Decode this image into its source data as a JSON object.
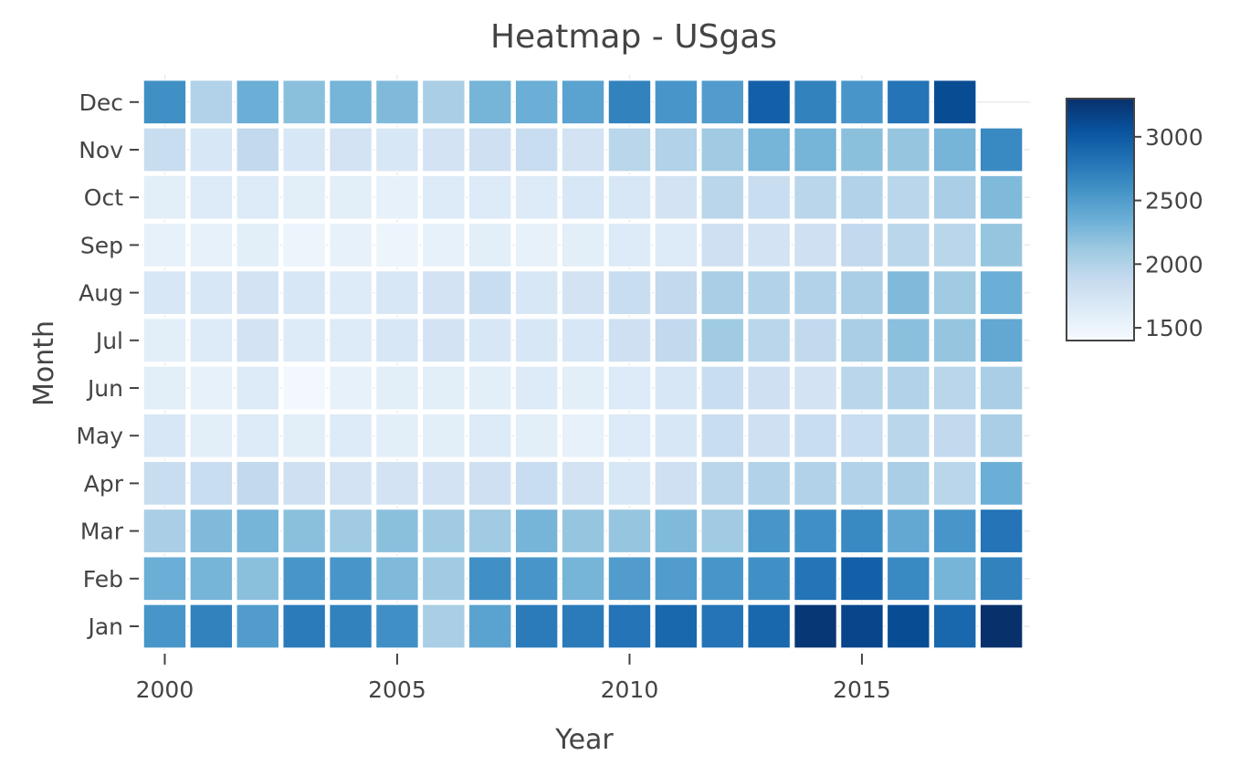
{
  "chart_data": {
    "type": "heatmap",
    "title": "Heatmap - USgas",
    "xlabel": "Year",
    "ylabel": "Month",
    "x": [
      2000,
      2001,
      2002,
      2003,
      2004,
      2005,
      2006,
      2007,
      2008,
      2009,
      2010,
      2011,
      2012,
      2013,
      2014,
      2015,
      2016,
      2017,
      2018
    ],
    "x_tick_labels": [
      "2000",
      "2005",
      "2010",
      "2015"
    ],
    "x_tick_values": [
      2000,
      2005,
      2010,
      2015
    ],
    "y": [
      "Jan",
      "Feb",
      "Mar",
      "Apr",
      "May",
      "Jun",
      "Jul",
      "Aug",
      "Sep",
      "Oct",
      "Nov",
      "Dec"
    ],
    "values": [
      [
        2550,
        2700,
        2500,
        2750,
        2700,
        2600,
        2050,
        2450,
        2750,
        2750,
        2800,
        2900,
        2800,
        2900,
        3250,
        3150,
        3100,
        2900,
        3300
      ],
      [
        2350,
        2300,
        2200,
        2550,
        2550,
        2250,
        2100,
        2600,
        2550,
        2300,
        2500,
        2500,
        2550,
        2600,
        2800,
        2950,
        2650,
        2300,
        2700
      ],
      [
        2050,
        2250,
        2300,
        2200,
        2100,
        2200,
        2100,
        2100,
        2300,
        2150,
        2150,
        2250,
        2100,
        2550,
        2600,
        2650,
        2400,
        2550,
        2800
      ],
      [
        1850,
        1850,
        1900,
        1800,
        1750,
        1750,
        1750,
        1800,
        1850,
        1750,
        1700,
        1800,
        1950,
        2000,
        2000,
        2000,
        2050,
        1950,
        2350
      ],
      [
        1700,
        1600,
        1650,
        1600,
        1650,
        1600,
        1600,
        1650,
        1600,
        1550,
        1650,
        1700,
        1850,
        1800,
        1850,
        1850,
        1950,
        1900,
        2050
      ],
      [
        1600,
        1550,
        1650,
        1450,
        1550,
        1600,
        1600,
        1600,
        1650,
        1600,
        1650,
        1700,
        1850,
        1800,
        1750,
        1950,
        2000,
        1950,
        2050
      ],
      [
        1600,
        1650,
        1750,
        1650,
        1650,
        1700,
        1750,
        1700,
        1700,
        1700,
        1800,
        1900,
        2100,
        1950,
        1900,
        2050,
        2200,
        2150,
        2400
      ],
      [
        1700,
        1700,
        1750,
        1700,
        1650,
        1700,
        1750,
        1850,
        1700,
        1750,
        1850,
        1900,
        2050,
        2000,
        2000,
        2050,
        2250,
        2100,
        2350
      ],
      [
        1550,
        1550,
        1600,
        1500,
        1550,
        1500,
        1550,
        1600,
        1550,
        1600,
        1650,
        1650,
        1800,
        1750,
        1800,
        1900,
        1950,
        1950,
        2150
      ],
      [
        1600,
        1650,
        1650,
        1600,
        1600,
        1550,
        1650,
        1650,
        1650,
        1700,
        1700,
        1750,
        1950,
        1850,
        1950,
        2000,
        1950,
        2050,
        2250
      ],
      [
        1850,
        1700,
        1900,
        1700,
        1750,
        1700,
        1750,
        1800,
        1850,
        1750,
        1950,
        2000,
        2100,
        2300,
        2300,
        2200,
        2150,
        2300,
        2650
      ],
      [
        2600,
        2000,
        2350,
        2200,
        2300,
        2250,
        2050,
        2300,
        2350,
        2450,
        2700,
        2550,
        2500,
        2950,
        2700,
        2550,
        2800,
        3100,
        null
      ]
    ],
    "colorbar": {
      "min": 1400,
      "max": 3300,
      "tick_values": [
        1500,
        2000,
        2500,
        3000
      ],
      "tick_labels": [
        "1500",
        "2000",
        "2500",
        "3000"
      ]
    },
    "colorscale": [
      "#f7fbff",
      "#deebf7",
      "#c6dbef",
      "#9ecae1",
      "#6baed6",
      "#4292c6",
      "#2171b5",
      "#08519c",
      "#08306b"
    ],
    "grid": true,
    "legend": "colorbar right"
  }
}
